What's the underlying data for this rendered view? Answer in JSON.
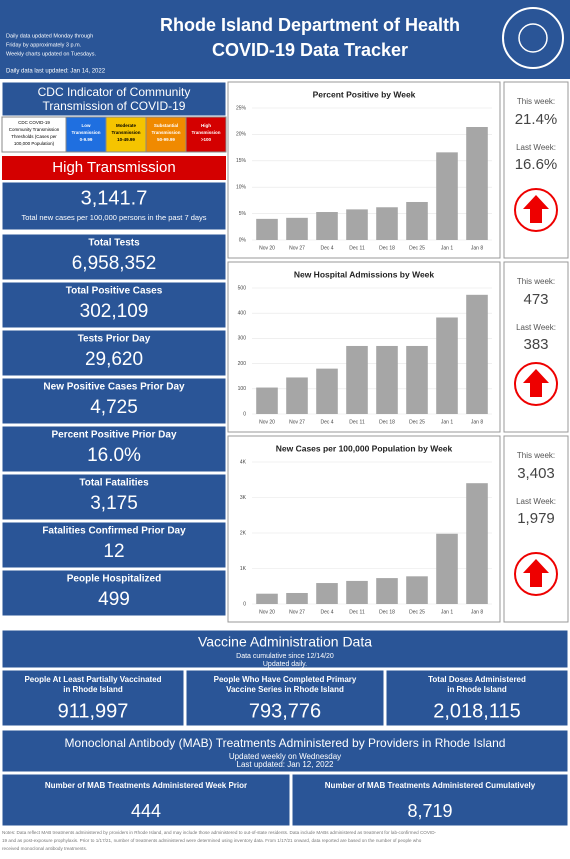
{
  "header": {
    "title": [
      "Rhode Island Department of Health",
      "COVID-19 Data Tracker"
    ],
    "notes": [
      "Daily data updated Monday through",
      "Friday by approximately 3 p.m.",
      "Weekly charts updated on Tuesdays."
    ],
    "last_updated": "Daily data last updated: Jan 14, 2022"
  },
  "cdc": {
    "title": [
      "CDC Indicator of Community",
      "Transmission of COVID-19"
    ],
    "thresholds": [
      {
        "lines": [
          "CDC COVID-19",
          "Community Transmission",
          "Thresholds (Cases per",
          "100,000 Population)"
        ],
        "color": "#ffffff",
        "text_color": "#000000"
      },
      {
        "lines": [
          "Low",
          "Transmission",
          "0-9.99"
        ],
        "color": "#1f6fe0",
        "text_color": "#ffffff"
      },
      {
        "lines": [
          "Moderate",
          "Transmission",
          "10-49.99"
        ],
        "color": "#f5c400",
        "text_color": "#000000"
      },
      {
        "lines": [
          "Substantial",
          "Transmission",
          "50-99.99"
        ],
        "color": "#f08a00",
        "text_color": "#ffffff"
      },
      {
        "lines": [
          "High",
          "Transmission",
          ">100"
        ],
        "color": "#d40000",
        "text_color": "#ffffff"
      }
    ],
    "level": "High Transmission",
    "rate": "3,141.7",
    "rate_label": "Total new cases per 100,000 persons in the past 7 days"
  },
  "left_panels": [
    {
      "label": "Total Tests",
      "value": "6,958,352"
    },
    {
      "label": "Total Positive Cases",
      "value": "302,109"
    },
    {
      "label": "Tests Prior Day",
      "value": "29,620"
    },
    {
      "label": "New Positive Cases Prior Day",
      "value": "4,725"
    },
    {
      "label": "Percent Positive Prior Day",
      "value": "16.0%"
    },
    {
      "label": "Total Fatalities",
      "value": "3,175"
    },
    {
      "label": "Fatalities Confirmed Prior Day",
      "value": "12"
    },
    {
      "label": "People Hospitalized",
      "value": "499"
    }
  ],
  "chart_data": [
    {
      "type": "bar",
      "title": "Percent Positive by Week",
      "categories": [
        "Nov 20",
        "Nov 27",
        "Dec 4",
        "Dec 11",
        "Dec 18",
        "Dec 25",
        "Jan 1",
        "Jan 8"
      ],
      "values": [
        4.0,
        4.2,
        5.3,
        5.8,
        6.2,
        7.2,
        16.6,
        21.4
      ],
      "color": "#a6a6a6",
      "ylim": [
        0,
        25
      ],
      "yticks": [
        {
          "value": 0,
          "label": "0%"
        },
        {
          "value": 5,
          "label": "5%"
        },
        {
          "value": 10,
          "label": "10%"
        },
        {
          "value": 15,
          "label": "15%"
        },
        {
          "value": 20,
          "label": "20%"
        },
        {
          "value": 25,
          "label": "25%"
        }
      ],
      "grid": true
    },
    {
      "type": "bar",
      "title": "New Hospital Admissions by Week",
      "categories": [
        "Nov 20",
        "Nov 27",
        "Dec 4",
        "Dec 11",
        "Dec 18",
        "Dec 25",
        "Jan 1",
        "Jan 8"
      ],
      "values": [
        105,
        145,
        180,
        270,
        270,
        270,
        383,
        473
      ],
      "color": "#a6a6a6",
      "ylim": [
        0,
        500
      ],
      "yticks": [
        0,
        100,
        200,
        300,
        400,
        500
      ],
      "grid": true
    },
    {
      "type": "bar",
      "title": "New Cases per 100,000 Population by Week",
      "categories": [
        "Nov 20",
        "Nov 27",
        "Dec 4",
        "Dec 11",
        "Dec 18",
        "Dec 25",
        "Jan 1",
        "Jan 8"
      ],
      "values": [
        290,
        310,
        590,
        650,
        730,
        780,
        1979,
        3403
      ],
      "color": "#a6a6a6",
      "ylim": [
        0,
        4000
      ],
      "yticks": [
        0,
        {
          "value": 1000,
          "label": "1K"
        },
        {
          "value": 2000,
          "label": "2K"
        },
        {
          "value": 3000,
          "label": "3K"
        },
        {
          "value": 4000,
          "label": "4K"
        }
      ],
      "grid": true
    }
  ],
  "side": [
    {
      "this_label": "This week:",
      "this_value": "21.4%",
      "last_label": "Last Week:",
      "last_value": "16.6%"
    },
    {
      "this_label": "This week:",
      "this_value": "473",
      "last_label": "Last Week:",
      "last_value": "383"
    },
    {
      "this_label": "This week:",
      "this_value": "3,403",
      "last_label": "Last Week:",
      "last_value": "1,979"
    }
  ],
  "vaccine": {
    "title": "Vaccine Administration Data",
    "sub": [
      "Data cumulative since 12/14/20",
      "Updated daily."
    ],
    "boxes": [
      {
        "lines": [
          "People At Least Partially Vaccinated",
          "in Rhode Island"
        ],
        "value": "911,997"
      },
      {
        "lines": [
          "People Who Have Completed Primary",
          "Vaccine Series in Rhode Island"
        ],
        "value": "793,776"
      },
      {
        "lines": [
          "Total Doses Administered",
          "in Rhode Island"
        ],
        "value": "2,018,115"
      }
    ]
  },
  "mab": {
    "title": "Monoclonal Antibody (MAB) Treatments Administered by Providers in Rhode Island",
    "sub": [
      "Updated weekly on Wednesday",
      "Last updated: Jan 12, 2022"
    ],
    "boxes": [
      {
        "label": "Number of MAB Treatments Administered Week Prior",
        "value": "444"
      },
      {
        "label": "Number of MAB Treatments Administered Cumulatively",
        "value": "8,719"
      }
    ]
  },
  "footnote": [
    "Notes: Data reflect MAB treatments administered by providers in Rhode Island, and may include those administered to out-of-state residents. Data include MABs administered as treatment for lab-confirmed COVID-",
    "19 and as post-exposure prophylaxis. Prior to 1/17/21, number of treatments administered were determined using inventory data. From 1/17/21 onward, data reported are based on the number of people who",
    "received monoclonal antibody treatments."
  ]
}
